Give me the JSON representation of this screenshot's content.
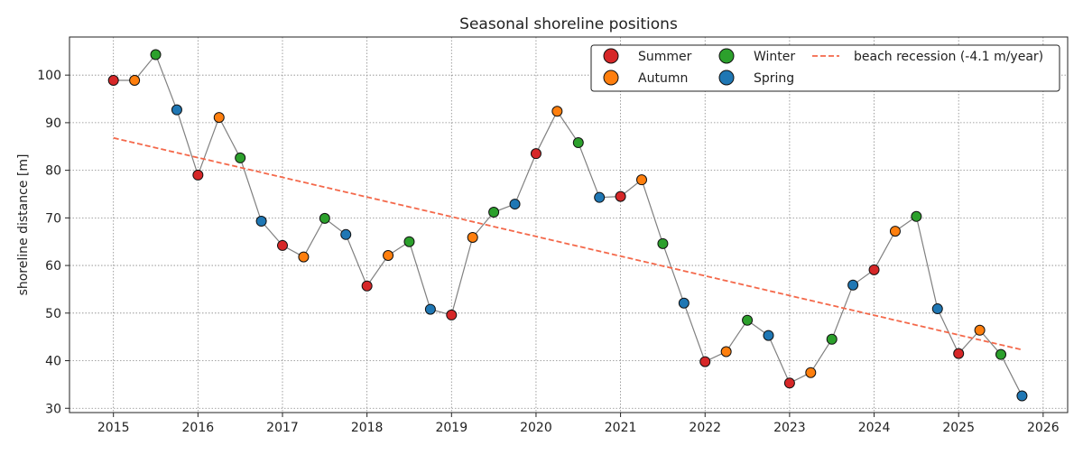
{
  "chart_data": {
    "type": "line",
    "title": "Seasonal shoreline positions",
    "xlabel": "",
    "ylabel": "shoreline distance [m]",
    "xlim": [
      2014.48,
      2026.29
    ],
    "ylim": [
      29.1,
      108
    ],
    "xticks": [
      2015,
      2016,
      2017,
      2018,
      2019,
      2020,
      2021,
      2022,
      2023,
      2024,
      2025,
      2026
    ],
    "yticks": [
      30,
      40,
      50,
      60,
      70,
      80,
      90,
      100
    ],
    "grid": true,
    "legend_position": "top-right",
    "season_colors": {
      "Summer": "#d62728",
      "Autumn": "#ff7f0e",
      "Winter": "#2ca02c",
      "Spring": "#1f77b4"
    },
    "line_color": "#808080",
    "trend_color": "#f4684a",
    "legend": [
      {
        "label": "Summer",
        "kind": "marker",
        "season": "Summer"
      },
      {
        "label": "Autumn",
        "kind": "marker",
        "season": "Autumn"
      },
      {
        "label": "Winter",
        "kind": "marker",
        "season": "Winter"
      },
      {
        "label": "Spring",
        "kind": "marker",
        "season": "Spring"
      },
      {
        "label": "beach recession (-4.1 m/year)",
        "kind": "dashed"
      }
    ],
    "points": [
      {
        "x": 2015.0,
        "y": 98.9,
        "season": "Summer"
      },
      {
        "x": 2015.25,
        "y": 98.9,
        "season": "Autumn"
      },
      {
        "x": 2015.5,
        "y": 104.3,
        "season": "Winter"
      },
      {
        "x": 2015.75,
        "y": 92.7,
        "season": "Spring"
      },
      {
        "x": 2016.0,
        "y": 79.0,
        "season": "Summer"
      },
      {
        "x": 2016.25,
        "y": 91.1,
        "season": "Autumn"
      },
      {
        "x": 2016.5,
        "y": 82.6,
        "season": "Winter"
      },
      {
        "x": 2016.75,
        "y": 69.3,
        "season": "Spring"
      },
      {
        "x": 2017.0,
        "y": 64.2,
        "season": "Summer"
      },
      {
        "x": 2017.25,
        "y": 61.8,
        "season": "Autumn"
      },
      {
        "x": 2017.5,
        "y": 69.9,
        "season": "Winter"
      },
      {
        "x": 2017.75,
        "y": 66.5,
        "season": "Spring"
      },
      {
        "x": 2018.0,
        "y": 55.7,
        "season": "Summer"
      },
      {
        "x": 2018.25,
        "y": 62.1,
        "season": "Autumn"
      },
      {
        "x": 2018.5,
        "y": 65.0,
        "season": "Winter"
      },
      {
        "x": 2018.75,
        "y": 50.8,
        "season": "Spring"
      },
      {
        "x": 2019.0,
        "y": 49.6,
        "season": "Summer"
      },
      {
        "x": 2019.25,
        "y": 65.9,
        "season": "Autumn"
      },
      {
        "x": 2019.5,
        "y": 71.2,
        "season": "Winter"
      },
      {
        "x": 2019.75,
        "y": 72.9,
        "season": "Spring"
      },
      {
        "x": 2020.0,
        "y": 83.5,
        "season": "Summer"
      },
      {
        "x": 2020.25,
        "y": 92.4,
        "season": "Autumn"
      },
      {
        "x": 2020.5,
        "y": 85.8,
        "season": "Winter"
      },
      {
        "x": 2020.75,
        "y": 74.3,
        "season": "Spring"
      },
      {
        "x": 2021.0,
        "y": 74.5,
        "season": "Summer"
      },
      {
        "x": 2021.25,
        "y": 78.0,
        "season": "Autumn"
      },
      {
        "x": 2021.5,
        "y": 64.6,
        "season": "Winter"
      },
      {
        "x": 2021.75,
        "y": 52.1,
        "season": "Spring"
      },
      {
        "x": 2022.0,
        "y": 39.8,
        "season": "Summer"
      },
      {
        "x": 2022.25,
        "y": 41.9,
        "season": "Autumn"
      },
      {
        "x": 2022.5,
        "y": 48.5,
        "season": "Winter"
      },
      {
        "x": 2022.75,
        "y": 45.3,
        "season": "Spring"
      },
      {
        "x": 2023.0,
        "y": 35.3,
        "season": "Summer"
      },
      {
        "x": 2023.25,
        "y": 37.5,
        "season": "Autumn"
      },
      {
        "x": 2023.5,
        "y": 44.5,
        "season": "Winter"
      },
      {
        "x": 2023.75,
        "y": 55.9,
        "season": "Spring"
      },
      {
        "x": 2024.0,
        "y": 59.1,
        "season": "Summer"
      },
      {
        "x": 2024.25,
        "y": 67.2,
        "season": "Autumn"
      },
      {
        "x": 2024.5,
        "y": 70.3,
        "season": "Winter"
      },
      {
        "x": 2024.75,
        "y": 50.9,
        "season": "Spring"
      },
      {
        "x": 2025.0,
        "y": 41.5,
        "season": "Summer"
      },
      {
        "x": 2025.25,
        "y": 46.4,
        "season": "Autumn"
      },
      {
        "x": 2025.5,
        "y": 41.3,
        "season": "Winter"
      },
      {
        "x": 2025.75,
        "y": 32.6,
        "season": "Spring"
      }
    ],
    "trend": {
      "x": [
        2015.0,
        2025.75
      ],
      "y": [
        86.8,
        42.3
      ]
    }
  }
}
